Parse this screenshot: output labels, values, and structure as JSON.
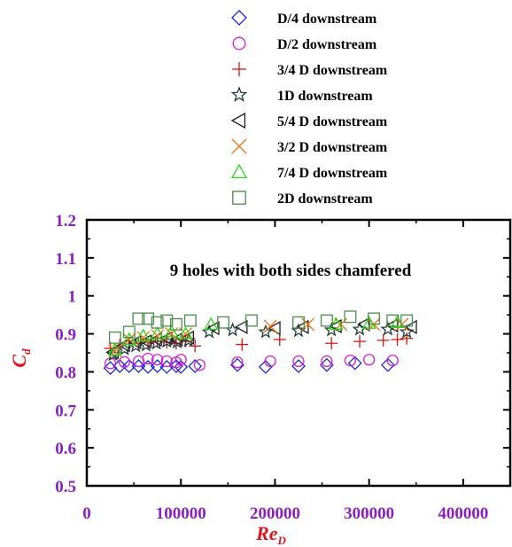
{
  "chart_data": {
    "type": "scatter",
    "annotation": "9 holes with both sides chamfered",
    "xlabel": "Re",
    "xlabel_sub": "D",
    "ylabel": "C",
    "ylabel_sub": "d",
    "xlim": [
      0,
      450000
    ],
    "ylim": [
      0.5,
      1.2
    ],
    "xticks": [
      0,
      100000,
      200000,
      300000,
      400000
    ],
    "yticks": [
      0.5,
      0.6,
      0.7,
      0.8,
      0.9,
      1,
      1.1,
      1.2
    ],
    "xtick_labels": [
      "0",
      "100000",
      "200000",
      "300000",
      "400000"
    ],
    "ytick_labels": [
      "0.5",
      "0.6",
      "0.7",
      "0.8",
      "0.9",
      "1",
      "1.1",
      "1.2"
    ],
    "tick_label_color": "#8b1fc0",
    "axis_label_color": "#e0141e",
    "legend_position": "top",
    "series": [
      {
        "name": "D/4 downstream",
        "marker": "diamond",
        "color": "#1e28d2",
        "x": [
          25000,
          35000,
          45000,
          55000,
          65000,
          75000,
          85000,
          95000,
          100000,
          115000,
          160000,
          190000,
          225000,
          255000,
          285000,
          320000
        ],
        "y": [
          0.81,
          0.815,
          0.815,
          0.815,
          0.813,
          0.815,
          0.813,
          0.815,
          0.813,
          0.815,
          0.818,
          0.813,
          0.815,
          0.818,
          0.823,
          0.818
        ]
      },
      {
        "name": "D/2 downstream",
        "marker": "circle",
        "color": "#d21ed2",
        "x": [
          25000,
          40000,
          55000,
          65000,
          75000,
          85000,
          95000,
          100000,
          120000,
          160000,
          195000,
          225000,
          255000,
          280000,
          300000,
          325000
        ],
        "y": [
          0.822,
          0.826,
          0.828,
          0.835,
          0.832,
          0.828,
          0.825,
          0.832,
          0.818,
          0.825,
          0.828,
          0.828,
          0.828,
          0.83,
          0.832,
          0.83
        ]
      },
      {
        "name": "3/4 D downstream",
        "marker": "plus",
        "color": "#d21414",
        "x": [
          25000,
          35000,
          45000,
          55000,
          65000,
          75000,
          85000,
          95000,
          105000,
          115000,
          165000,
          205000,
          260000,
          290000,
          315000,
          330000,
          340000
        ],
        "y": [
          0.862,
          0.87,
          0.873,
          0.875,
          0.878,
          0.88,
          0.878,
          0.875,
          0.88,
          0.868,
          0.872,
          0.885,
          0.875,
          0.88,
          0.883,
          0.885,
          0.888
        ]
      },
      {
        "name": "1D downstream",
        "marker": "star",
        "color": "#1e3c3c",
        "x": [
          28000,
          40000,
          52000,
          63000,
          74000,
          85000,
          96000,
          108000,
          130000,
          155000,
          190000,
          225000,
          260000,
          290000,
          320000,
          340000
        ],
        "y": [
          0.845,
          0.86,
          0.868,
          0.87,
          0.875,
          0.88,
          0.878,
          0.882,
          0.905,
          0.91,
          0.905,
          0.908,
          0.91,
          0.912,
          0.912,
          0.905
        ]
      },
      {
        "name": "5/4 D downstream",
        "marker": "triangle-left",
        "color": "#222222",
        "x": [
          28000,
          40000,
          52000,
          63000,
          74000,
          85000,
          96000,
          108000,
          135000,
          165000,
          200000,
          230000,
          265000,
          295000,
          325000,
          345000
        ],
        "y": [
          0.852,
          0.87,
          0.878,
          0.88,
          0.885,
          0.888,
          0.885,
          0.89,
          0.915,
          0.918,
          0.915,
          0.918,
          0.92,
          0.925,
          0.922,
          0.918
        ]
      },
      {
        "name": "3/2 D downstream",
        "marker": "cross",
        "color": "#f07814",
        "x": [
          30000,
          45000,
          60000,
          75000,
          90000,
          105000,
          195000,
          235000,
          270000,
          305000,
          335000
        ],
        "y": [
          0.855,
          0.885,
          0.89,
          0.895,
          0.9,
          0.9,
          0.92,
          0.925,
          0.925,
          0.925,
          0.925
        ]
      },
      {
        "name": "7/4 D downstream",
        "marker": "triangle-up",
        "color": "#28dc14",
        "x": [
          30000,
          45000,
          60000,
          75000,
          90000,
          105000,
          132000,
          265000,
          300000,
          330000
        ],
        "y": [
          0.858,
          0.885,
          0.895,
          0.9,
          0.905,
          0.9,
          0.925,
          0.925,
          0.928,
          0.93
        ]
      },
      {
        "name": "2D downstream",
        "marker": "square",
        "color": "#4a8c4a",
        "x": [
          30000,
          45000,
          55000,
          65000,
          75000,
          85000,
          95000,
          110000,
          145000,
          175000,
          225000,
          255000,
          280000,
          305000,
          325000,
          340000
        ],
        "y": [
          0.89,
          0.905,
          0.94,
          0.94,
          0.93,
          0.935,
          0.925,
          0.935,
          0.93,
          0.935,
          0.93,
          0.935,
          0.945,
          0.94,
          0.935,
          0.935
        ]
      }
    ]
  }
}
